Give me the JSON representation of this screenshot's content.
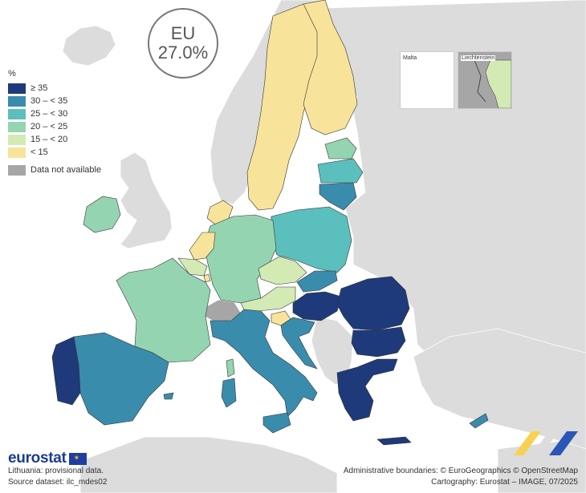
{
  "eu": {
    "label": "EU",
    "value": "27.0%"
  },
  "legend": {
    "unit": "%",
    "items": [
      {
        "label": "≥ 35",
        "color": "#1e3a7a"
      },
      {
        "label": "30 – < 35",
        "color": "#3a8cad"
      },
      {
        "label": "25 – < 30",
        "color": "#5bbfbd"
      },
      {
        "label": "20 – < 25",
        "color": "#95d4b0"
      },
      {
        "label": "15 – < 20",
        "color": "#d3eab5"
      },
      {
        "label": "< 15",
        "color": "#f7e49a"
      }
    ],
    "na": {
      "label": "Data not available",
      "color": "#a6a6a6"
    }
  },
  "insets": {
    "malta": {
      "label": "Malta"
    },
    "liechtenstein": {
      "label": "Liechtenstein"
    }
  },
  "footer": {
    "logo": "eurostat",
    "note1": "Lithuania: provisional data.",
    "note2": "Source dataset: ilc_mdes02",
    "credit1": "Administrative boundaries: © EuroGeographics © OpenStreetMap",
    "credit2": "Cartography: Eurostat – IMAGE, 07/2025"
  },
  "colors": {
    "sea": "#ffffff",
    "non_eu": "#dcdcdc",
    "na": "#a6a6a6",
    "border": "#333333"
  }
}
